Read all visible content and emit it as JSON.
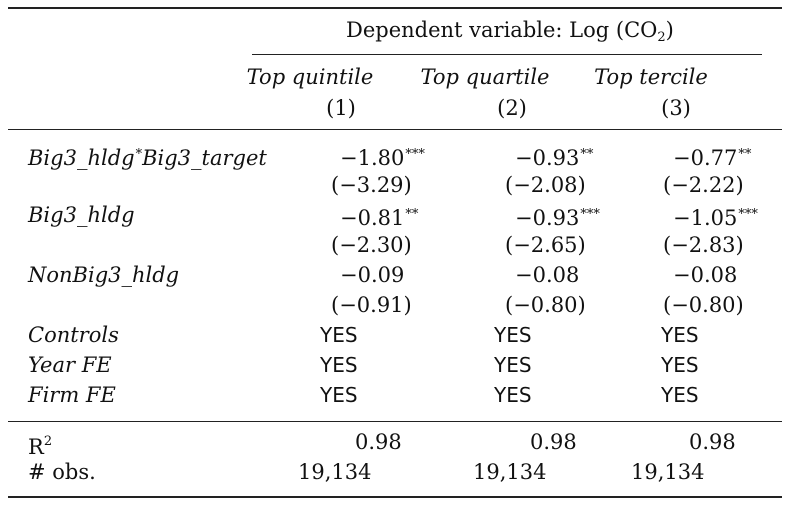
{
  "table": {
    "dep_var_label": "Dependent variable: Log (CO",
    "dep_var_sub": "2",
    "dep_var_close": ")",
    "columns": [
      {
        "name": "Top quintile",
        "num": "(1)"
      },
      {
        "name": "Top quartile",
        "num": "(2)"
      },
      {
        "name": "Top tercile",
        "num": "(3)"
      }
    ],
    "rows": {
      "big3_interaction": {
        "label_a": "Big3_hldg",
        "label_star": "*",
        "label_b": "Big3_target",
        "coefs": [
          "−1.80",
          "−0.93",
          "−0.77"
        ],
        "stars": [
          "***",
          "**",
          "**"
        ],
        "tstats": [
          "(−3.29)",
          "(−2.08)",
          "(−2.22)"
        ]
      },
      "big3_hldg": {
        "label": "Big3_hldg",
        "coefs": [
          "−0.81",
          "−0.93",
          "−1.05"
        ],
        "stars": [
          "**",
          "***",
          "***"
        ],
        "tstats": [
          "(−2.30)",
          "(−2.65)",
          "(−2.83)"
        ]
      },
      "nonbig3_hldg": {
        "label": "NonBig3_hldg",
        "coefs": [
          "−0.09",
          "−0.08",
          "−0.08"
        ],
        "tstats": [
          "(−0.91)",
          "(−0.80)",
          "(−0.80)"
        ]
      },
      "controls": {
        "label": "Controls",
        "values": [
          "YES",
          "YES",
          "YES"
        ]
      },
      "year_fe": {
        "label": "Year FE",
        "values": [
          "YES",
          "YES",
          "YES"
        ]
      },
      "firm_fe": {
        "label": "Firm FE",
        "values": [
          "YES",
          "YES",
          "YES"
        ]
      },
      "r2": {
        "label": "R",
        "label_sup": "2",
        "values": [
          "0.98",
          "0.98",
          "0.98"
        ]
      },
      "obs": {
        "label": "# obs.",
        "values": [
          "19,134",
          "19,134",
          "19,134"
        ]
      }
    }
  }
}
